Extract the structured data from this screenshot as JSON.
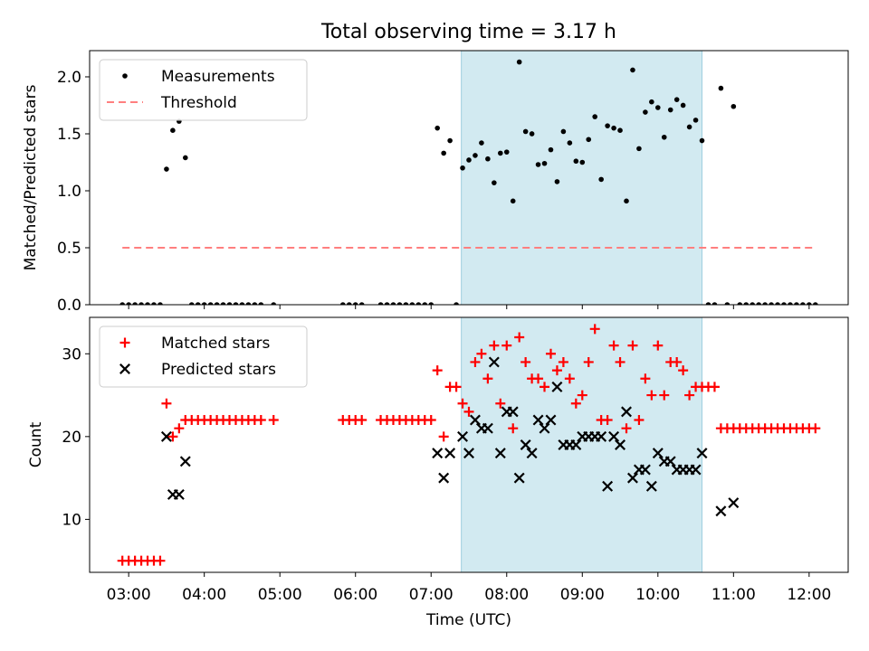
{
  "chart_data": [
    {
      "type": "scatter",
      "title": "Total observing time = 3.17 h",
      "xlabel": "",
      "ylabel": "Matched/Predicted stars",
      "xlim": [
        "02:29",
        "12:31"
      ],
      "ylim": [
        0,
        2.23
      ],
      "yticks": [
        0.0,
        0.5,
        1.0,
        1.5,
        2.0
      ],
      "ytick_labels": [
        "0.0",
        "0.5",
        "1.0",
        "1.5",
        "2.0"
      ],
      "grid": false,
      "legend_position": "upper left",
      "shaded_interval": [
        "07:24",
        "10:35"
      ],
      "shaded_color": "#add8e6",
      "series": [
        {
          "name": "Measurements",
          "marker": "dot",
          "color": "#000000",
          "points": [
            [
              "02:55",
              0
            ],
            [
              "03:00",
              0
            ],
            [
              "03:05",
              0
            ],
            [
              "03:10",
              0
            ],
            [
              "03:15",
              0
            ],
            [
              "03:20",
              0
            ],
            [
              "03:25",
              0
            ],
            [
              "03:30",
              1.19
            ],
            [
              "03:35",
              1.53
            ],
            [
              "03:40",
              1.61
            ],
            [
              "03:45",
              1.29
            ],
            [
              "03:50",
              0
            ],
            [
              "03:55",
              0
            ],
            [
              "04:00",
              0
            ],
            [
              "04:05",
              0
            ],
            [
              "04:10",
              0
            ],
            [
              "04:15",
              0
            ],
            [
              "04:20",
              0
            ],
            [
              "04:25",
              0
            ],
            [
              "04:30",
              0
            ],
            [
              "04:35",
              0
            ],
            [
              "04:40",
              0
            ],
            [
              "04:45",
              0
            ],
            [
              "04:55",
              0
            ],
            [
              "05:50",
              0
            ],
            [
              "05:55",
              0
            ],
            [
              "06:00",
              0
            ],
            [
              "06:05",
              0
            ],
            [
              "06:20",
              0
            ],
            [
              "06:25",
              0
            ],
            [
              "06:30",
              0
            ],
            [
              "06:35",
              0
            ],
            [
              "06:40",
              0
            ],
            [
              "06:45",
              0
            ],
            [
              "06:50",
              0
            ],
            [
              "06:55",
              0
            ],
            [
              "07:00",
              0
            ],
            [
              "07:05",
              1.55
            ],
            [
              "07:10",
              1.33
            ],
            [
              "07:15",
              1.44
            ],
            [
              "07:20",
              0
            ],
            [
              "07:25",
              1.2
            ],
            [
              "07:30",
              1.27
            ],
            [
              "07:35",
              1.31
            ],
            [
              "07:40",
              1.42
            ],
            [
              "07:45",
              1.28
            ],
            [
              "07:50",
              1.07
            ],
            [
              "07:55",
              1.33
            ],
            [
              "08:00",
              1.34
            ],
            [
              "08:05",
              0.91
            ],
            [
              "08:10",
              2.13
            ],
            [
              "08:15",
              1.52
            ],
            [
              "08:20",
              1.5
            ],
            [
              "08:25",
              1.23
            ],
            [
              "08:30",
              1.24
            ],
            [
              "08:35",
              1.36
            ],
            [
              "08:40",
              1.08
            ],
            [
              "08:45",
              1.52
            ],
            [
              "08:50",
              1.42
            ],
            [
              "08:55",
              1.26
            ],
            [
              "09:00",
              1.25
            ],
            [
              "09:05",
              1.45
            ],
            [
              "09:10",
              1.65
            ],
            [
              "09:15",
              1.1
            ],
            [
              "09:20",
              1.57
            ],
            [
              "09:25",
              1.55
            ],
            [
              "09:30",
              1.53
            ],
            [
              "09:35",
              0.91
            ],
            [
              "09:40",
              2.06
            ],
            [
              "09:45",
              1.37
            ],
            [
              "09:50",
              1.69
            ],
            [
              "09:55",
              1.78
            ],
            [
              "10:00",
              1.73
            ],
            [
              "10:05",
              1.47
            ],
            [
              "10:10",
              1.71
            ],
            [
              "10:15",
              1.8
            ],
            [
              "10:20",
              1.75
            ],
            [
              "10:25",
              1.56
            ],
            [
              "10:30",
              1.62
            ],
            [
              "10:35",
              1.44
            ],
            [
              "10:40",
              0
            ],
            [
              "10:45",
              0
            ],
            [
              "10:50",
              1.9
            ],
            [
              "10:55",
              0
            ],
            [
              "11:00",
              1.74
            ],
            [
              "11:05",
              0
            ],
            [
              "11:10",
              0
            ],
            [
              "11:15",
              0
            ],
            [
              "11:20",
              0
            ],
            [
              "11:25",
              0
            ],
            [
              "11:30",
              0
            ],
            [
              "11:35",
              0
            ],
            [
              "11:40",
              0
            ],
            [
              "11:45",
              0
            ],
            [
              "11:50",
              0
            ],
            [
              "11:55",
              0
            ],
            [
              "12:00",
              0
            ],
            [
              "12:05",
              0
            ]
          ]
        },
        {
          "name": "Threshold",
          "style": "dashed-line",
          "color": "#ff7f7f",
          "points": [
            [
              "02:55",
              0.5
            ],
            [
              "12:05",
              0.5
            ]
          ]
        }
      ]
    },
    {
      "type": "scatter",
      "title": "",
      "xlabel": "Time (UTC)",
      "ylabel": "Count",
      "xlim": [
        "02:29",
        "12:31"
      ],
      "ylim": [
        3.6,
        34.4
      ],
      "yticks": [
        10,
        20,
        30
      ],
      "ytick_labels": [
        "10",
        "20",
        "30"
      ],
      "xticks": [
        "03:00",
        "04:00",
        "05:00",
        "06:00",
        "07:00",
        "08:00",
        "09:00",
        "10:00",
        "11:00",
        "12:00"
      ],
      "grid": false,
      "legend_position": "upper left",
      "shaded_interval": [
        "07:24",
        "10:35"
      ],
      "shaded_color": "#add8e6",
      "series": [
        {
          "name": "Matched stars",
          "marker": "plus",
          "color": "#ff0000",
          "points": [
            [
              "02:55",
              5
            ],
            [
              "03:00",
              5
            ],
            [
              "03:05",
              5
            ],
            [
              "03:10",
              5
            ],
            [
              "03:15",
              5
            ],
            [
              "03:20",
              5
            ],
            [
              "03:25",
              5
            ],
            [
              "03:30",
              24
            ],
            [
              "03:35",
              20
            ],
            [
              "03:40",
              21
            ],
            [
              "03:45",
              22
            ],
            [
              "03:50",
              22
            ],
            [
              "03:55",
              22
            ],
            [
              "04:00",
              22
            ],
            [
              "04:05",
              22
            ],
            [
              "04:10",
              22
            ],
            [
              "04:15",
              22
            ],
            [
              "04:20",
              22
            ],
            [
              "04:25",
              22
            ],
            [
              "04:30",
              22
            ],
            [
              "04:35",
              22
            ],
            [
              "04:40",
              22
            ],
            [
              "04:45",
              22
            ],
            [
              "04:55",
              22
            ],
            [
              "05:50",
              22
            ],
            [
              "05:55",
              22
            ],
            [
              "06:00",
              22
            ],
            [
              "06:05",
              22
            ],
            [
              "06:20",
              22
            ],
            [
              "06:25",
              22
            ],
            [
              "06:30",
              22
            ],
            [
              "06:35",
              22
            ],
            [
              "06:40",
              22
            ],
            [
              "06:45",
              22
            ],
            [
              "06:50",
              22
            ],
            [
              "06:55",
              22
            ],
            [
              "07:00",
              22
            ],
            [
              "07:05",
              28
            ],
            [
              "07:10",
              20
            ],
            [
              "07:15",
              26
            ],
            [
              "07:20",
              26
            ],
            [
              "07:25",
              24
            ],
            [
              "07:30",
              23
            ],
            [
              "07:35",
              29
            ],
            [
              "07:40",
              30
            ],
            [
              "07:45",
              27
            ],
            [
              "07:50",
              31
            ],
            [
              "07:55",
              24
            ],
            [
              "08:00",
              31
            ],
            [
              "08:05",
              21
            ],
            [
              "08:10",
              32
            ],
            [
              "08:15",
              29
            ],
            [
              "08:20",
              27
            ],
            [
              "08:25",
              27
            ],
            [
              "08:30",
              26
            ],
            [
              "08:35",
              30
            ],
            [
              "08:40",
              28
            ],
            [
              "08:45",
              29
            ],
            [
              "08:50",
              27
            ],
            [
              "08:55",
              24
            ],
            [
              "09:00",
              25
            ],
            [
              "09:05",
              29
            ],
            [
              "09:10",
              33
            ],
            [
              "09:15",
              22
            ],
            [
              "09:20",
              22
            ],
            [
              "09:25",
              31
            ],
            [
              "09:30",
              29
            ],
            [
              "09:35",
              21
            ],
            [
              "09:40",
              31
            ],
            [
              "09:45",
              22
            ],
            [
              "09:50",
              27
            ],
            [
              "09:55",
              25
            ],
            [
              "10:00",
              31
            ],
            [
              "10:05",
              25
            ],
            [
              "10:10",
              29
            ],
            [
              "10:15",
              29
            ],
            [
              "10:20",
              28
            ],
            [
              "10:25",
              25
            ],
            [
              "10:30",
              26
            ],
            [
              "10:35",
              26
            ],
            [
              "10:40",
              26
            ],
            [
              "10:45",
              26
            ],
            [
              "10:50",
              21
            ],
            [
              "10:55",
              21
            ],
            [
              "11:00",
              21
            ],
            [
              "11:05",
              21
            ],
            [
              "11:10",
              21
            ],
            [
              "11:15",
              21
            ],
            [
              "11:20",
              21
            ],
            [
              "11:25",
              21
            ],
            [
              "11:30",
              21
            ],
            [
              "11:35",
              21
            ],
            [
              "11:40",
              21
            ],
            [
              "11:45",
              21
            ],
            [
              "11:50",
              21
            ],
            [
              "11:55",
              21
            ],
            [
              "12:00",
              21
            ],
            [
              "12:05",
              21
            ]
          ]
        },
        {
          "name": "Predicted stars",
          "marker": "x",
          "color": "#000000",
          "points": [
            [
              "03:30",
              20
            ],
            [
              "03:35",
              13
            ],
            [
              "03:40",
              13
            ],
            [
              "03:45",
              17
            ],
            [
              "07:05",
              18
            ],
            [
              "07:10",
              15
            ],
            [
              "07:15",
              18
            ],
            [
              "07:25",
              20
            ],
            [
              "07:30",
              18
            ],
            [
              "07:35",
              22
            ],
            [
              "07:40",
              21
            ],
            [
              "07:45",
              21
            ],
            [
              "07:50",
              29
            ],
            [
              "07:55",
              18
            ],
            [
              "08:00",
              23
            ],
            [
              "08:05",
              23
            ],
            [
              "08:10",
              15
            ],
            [
              "08:15",
              19
            ],
            [
              "08:20",
              18
            ],
            [
              "08:25",
              22
            ],
            [
              "08:30",
              21
            ],
            [
              "08:35",
              22
            ],
            [
              "08:40",
              26
            ],
            [
              "08:45",
              19
            ],
            [
              "08:50",
              19
            ],
            [
              "08:55",
              19
            ],
            [
              "09:00",
              20
            ],
            [
              "09:05",
              20
            ],
            [
              "09:10",
              20
            ],
            [
              "09:15",
              20
            ],
            [
              "09:20",
              14
            ],
            [
              "09:25",
              20
            ],
            [
              "09:30",
              19
            ],
            [
              "09:35",
              23
            ],
            [
              "09:40",
              15
            ],
            [
              "09:45",
              16
            ],
            [
              "09:50",
              16
            ],
            [
              "09:55",
              14
            ],
            [
              "10:00",
              18
            ],
            [
              "10:05",
              17
            ],
            [
              "10:10",
              17
            ],
            [
              "10:15",
              16
            ],
            [
              "10:20",
              16
            ],
            [
              "10:25",
              16
            ],
            [
              "10:30",
              16
            ],
            [
              "10:35",
              18
            ],
            [
              "10:50",
              11
            ],
            [
              "11:00",
              12
            ]
          ]
        }
      ]
    }
  ]
}
